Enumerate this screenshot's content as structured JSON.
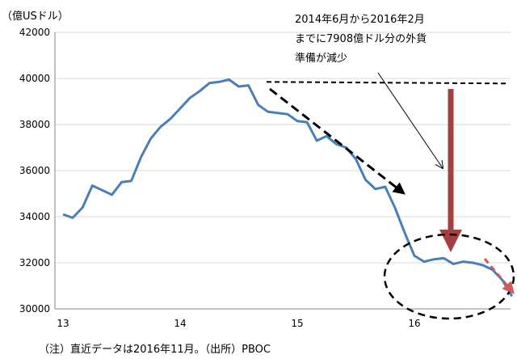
{
  "chart_data": {
    "type": "line",
    "y_unit_label": "（億USドル）",
    "x_ticks": [
      "13",
      "14",
      "15",
      "16"
    ],
    "y_ticks": [
      "42000",
      "40000",
      "38000",
      "36000",
      "34000",
      "32000",
      "30000"
    ],
    "ylim": [
      30000,
      42000
    ],
    "xlim": [
      13,
      17.0
    ],
    "grid": "horizontal",
    "series": [
      {
        "color": "#4a7ebb",
        "points": [
          [
            13.0,
            34100
          ],
          [
            13.083,
            33950
          ],
          [
            13.167,
            34400
          ],
          [
            13.25,
            35350
          ],
          [
            13.333,
            35150
          ],
          [
            13.417,
            34950
          ],
          [
            13.5,
            35500
          ],
          [
            13.583,
            35550
          ],
          [
            13.667,
            36600
          ],
          [
            13.75,
            37400
          ],
          [
            13.833,
            37900
          ],
          [
            13.917,
            38250
          ],
          [
            14.0,
            38700
          ],
          [
            14.083,
            39150
          ],
          [
            14.167,
            39450
          ],
          [
            14.25,
            39800
          ],
          [
            14.333,
            39850
          ],
          [
            14.417,
            39950
          ],
          [
            14.5,
            39650
          ],
          [
            14.583,
            39700
          ],
          [
            14.667,
            38850
          ],
          [
            14.75,
            38550
          ],
          [
            14.833,
            38500
          ],
          [
            14.917,
            38450
          ],
          [
            15.0,
            38150
          ],
          [
            15.083,
            38100
          ],
          [
            15.167,
            37300
          ],
          [
            15.25,
            37500
          ],
          [
            15.333,
            37150
          ],
          [
            15.417,
            37000
          ],
          [
            15.5,
            36500
          ],
          [
            15.583,
            35600
          ],
          [
            15.667,
            35200
          ],
          [
            15.75,
            35300
          ],
          [
            15.833,
            34400
          ],
          [
            15.917,
            33300
          ],
          [
            16.0,
            32300
          ],
          [
            16.083,
            32050
          ],
          [
            16.167,
            32150
          ],
          [
            16.25,
            32200
          ],
          [
            16.333,
            31950
          ],
          [
            16.417,
            32050
          ],
          [
            16.5,
            32000
          ],
          [
            16.583,
            31900
          ],
          [
            16.667,
            31700
          ],
          [
            16.75,
            31250
          ],
          [
            16.833,
            30550
          ]
        ]
      }
    ],
    "annotations": {
      "callout_lines": [
        "2014年6月から2016年2月",
        "までに7908億ドル分の外貨",
        "準備が減少"
      ],
      "footnote": "（注）直近データは2016年11月。（出所）PBOC",
      "dashed_level_y": 39850,
      "arrow_color": "#a6403f",
      "trend_color": "#000000",
      "recent_arrow_color": "#d25a57"
    }
  }
}
